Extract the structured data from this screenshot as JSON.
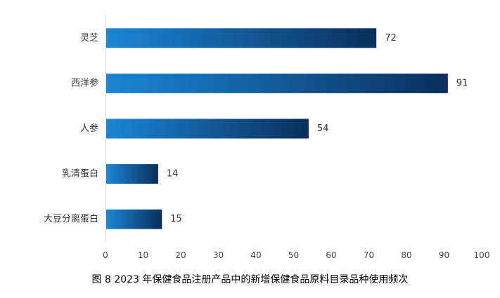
{
  "caption": "图 8 2023 年保健食品注册产品中的新增保健食品原料目录品种使用频次",
  "chart_data": {
    "type": "bar",
    "orientation": "horizontal",
    "categories": [
      "灵芝",
      "西洋参",
      "人参",
      "乳清蛋白",
      "大豆分离蛋白"
    ],
    "values": [
      72,
      91,
      54,
      14,
      15
    ],
    "xlim": [
      0,
      100
    ],
    "xticks": [
      0,
      10,
      20,
      30,
      40,
      50,
      60,
      70,
      80,
      90,
      100
    ],
    "grid": false,
    "legend": "none",
    "title": "",
    "xlabel": "",
    "ylabel": "",
    "colors": {
      "bar_light": "#1a86d6",
      "bar_dark": "#0a2f5c",
      "axis": "#d9d9d9"
    }
  }
}
